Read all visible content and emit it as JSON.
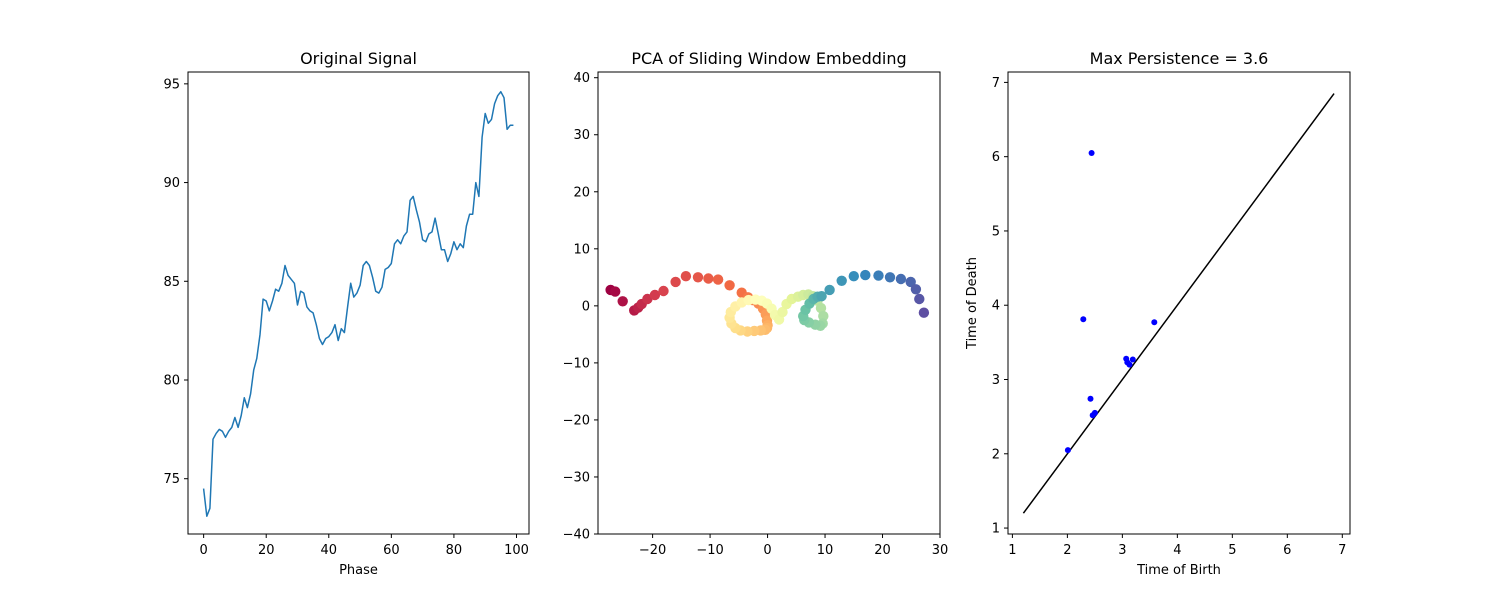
{
  "chart_data": [
    {
      "type": "line",
      "title": "Original Signal",
      "xlabel": "Phase",
      "ylabel": "",
      "xlim": [
        -5,
        104
      ],
      "ylim": [
        72.2,
        95.6
      ],
      "xticks": [
        0,
        20,
        40,
        60,
        80,
        100
      ],
      "yticks": [
        75,
        80,
        85,
        90,
        95
      ],
      "grid": false,
      "color": "#1f77b4",
      "series": [
        {
          "x": [
            0,
            1,
            2,
            3,
            4,
            5,
            6,
            7,
            8,
            9,
            10,
            11,
            12,
            13,
            14,
            15,
            16,
            17,
            18,
            19,
            20,
            21,
            22,
            23,
            24,
            25,
            26,
            27,
            28,
            29,
            30,
            31,
            32,
            33,
            34,
            35,
            36,
            37,
            38,
            39,
            40,
            41,
            42,
            43,
            44,
            45,
            46,
            47,
            48,
            49,
            50,
            51,
            52,
            53,
            54,
            55,
            56,
            57,
            58,
            59,
            60,
            61,
            62,
            63,
            64,
            65,
            66,
            67,
            68,
            69,
            70,
            71,
            72,
            73,
            74,
            75,
            76,
            77,
            78,
            79,
            80,
            81,
            82,
            83,
            84,
            85,
            86,
            87,
            88,
            89,
            90,
            91,
            92,
            93,
            94,
            95,
            96,
            97,
            98,
            99
          ],
          "y": [
            74.5,
            73.1,
            73.5,
            77.0,
            77.3,
            77.5,
            77.4,
            77.1,
            77.4,
            77.6,
            78.1,
            77.6,
            78.2,
            79.1,
            78.6,
            79.3,
            80.5,
            81.1,
            82.3,
            84.1,
            84.0,
            83.5,
            84.0,
            84.6,
            84.5,
            84.9,
            85.8,
            85.3,
            85.1,
            84.9,
            83.8,
            84.5,
            84.4,
            83.7,
            83.5,
            83.4,
            82.8,
            82.1,
            81.8,
            82.1,
            82.2,
            82.4,
            82.8,
            82.0,
            82.6,
            82.4,
            83.7,
            84.9,
            84.2,
            84.4,
            84.8,
            85.8,
            86.0,
            85.8,
            85.2,
            84.5,
            84.4,
            84.7,
            85.6,
            85.7,
            85.9,
            86.9,
            87.1,
            86.9,
            87.3,
            87.5,
            89.1,
            89.3,
            88.6,
            88.0,
            87.1,
            87.0,
            87.4,
            87.5,
            88.2,
            87.4,
            86.6,
            86.6,
            86.0,
            86.4,
            87.0,
            86.6,
            86.9,
            86.7,
            87.8,
            88.4,
            88.4,
            90.0,
            89.3,
            92.3,
            93.5,
            93.0,
            93.2,
            94.0,
            94.4,
            94.6,
            94.3,
            92.7,
            92.9,
            92.9
          ]
        }
      ]
    },
    {
      "type": "scatter",
      "title": "PCA of Sliding Window Embedding",
      "xlabel": "",
      "ylabel": "",
      "xlim": [
        -29.5,
        30
      ],
      "ylim": [
        -40,
        41
      ],
      "xticks": [
        -20,
        -10,
        0,
        10,
        20,
        30
      ],
      "yticks": [
        -40,
        -30,
        -20,
        -10,
        0,
        10,
        20,
        30,
        40
      ],
      "grid": false,
      "colormap": "Spectral",
      "series": [
        {
          "x": [
            -27.3,
            -26.5,
            -25.2,
            -23.2,
            -22.5,
            -21.9,
            -20.9,
            -19.6,
            -18.1,
            -16.0,
            -14.2,
            -12.1,
            -10.3,
            -8.6,
            -6.6,
            -4.5,
            -3.4,
            -2.6,
            -1.6,
            -0.8,
            -0.3,
            -0.1,
            0.0,
            -0.1,
            -0.4,
            -1.2,
            -2.3,
            -3.5,
            -4.7,
            -5.6,
            -6.3,
            -6.6,
            -6.4,
            -5.6,
            -4.5,
            -3.3,
            -2.1,
            -1.0,
            -0.1,
            0.7,
            1.3,
            2.0,
            2.6,
            3.3,
            4.2,
            5.3,
            6.2,
            7.1,
            7.9,
            8.7,
            9.3,
            9.7,
            9.6,
            9.2,
            8.3,
            7.2,
            6.4,
            6.2,
            6.6,
            7.3,
            8.0,
            8.7,
            9.4,
            10.8,
            12.9,
            15.0,
            17.0,
            19.3,
            21.3,
            23.2,
            24.9,
            25.8,
            26.4,
            27.2
          ],
          "y": [
            2.8,
            2.5,
            0.8,
            -0.8,
            -0.3,
            0.3,
            1.2,
            1.9,
            2.6,
            4.2,
            5.2,
            5.0,
            4.8,
            4.6,
            3.6,
            2.3,
            1.5,
            1.0,
            0.4,
            -0.5,
            -1.5,
            -2.6,
            -3.4,
            -3.9,
            -4.2,
            -4.3,
            -4.4,
            -4.5,
            -4.3,
            -3.9,
            -3.1,
            -2.1,
            -1.1,
            -0.1,
            0.6,
            1.0,
            1.1,
            0.9,
            0.4,
            -0.5,
            -1.6,
            -2.4,
            -1.1,
            0.3,
            1.2,
            1.6,
            1.9,
            2.0,
            1.7,
            0.9,
            -0.4,
            -1.8,
            -3.1,
            -3.5,
            -3.3,
            -2.9,
            -2.5,
            -1.8,
            -0.7,
            0.4,
            1.2,
            1.6,
            1.7,
            2.8,
            4.4,
            5.2,
            5.4,
            5.3,
            5.0,
            4.7,
            4.2,
            2.9,
            1.2,
            -1.2
          ]
        }
      ]
    },
    {
      "type": "scatter",
      "title": "Max Persistence = 3.6",
      "xlabel": "Time of Birth",
      "ylabel": "Time of Death",
      "xlim": [
        0.92,
        7.14
      ],
      "ylim": [
        0.92,
        7.14
      ],
      "xticks": [
        1,
        2,
        3,
        4,
        5,
        6,
        7
      ],
      "yticks": [
        1,
        2,
        3,
        4,
        5,
        6,
        7
      ],
      "grid": false,
      "points_color": "#0000ff",
      "series": [
        {
          "x": [
            2.44,
            2.29,
            3.58,
            3.07,
            3.19,
            3.09,
            3.13,
            2.42,
            2.5,
            2.46,
            2.01
          ],
          "y": [
            6.05,
            3.81,
            3.77,
            3.28,
            3.27,
            3.23,
            3.2,
            2.74,
            2.55,
            2.52,
            2.05
          ]
        }
      ],
      "diagonal": {
        "from": 1.2,
        "to": 6.85,
        "color": "#000000"
      }
    }
  ]
}
